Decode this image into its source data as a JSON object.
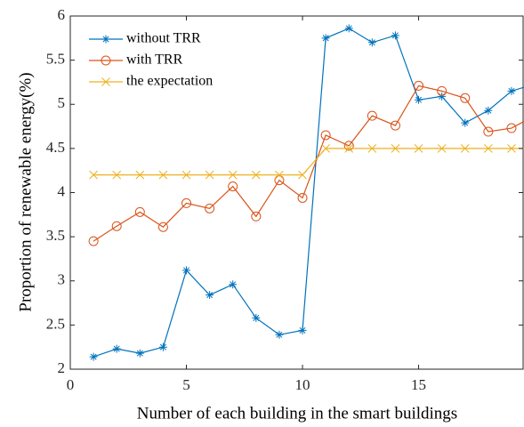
{
  "chart_data": {
    "type": "line",
    "xlabel": "Number of each building in the smart buildings",
    "ylabel": "Proportion of renewable energy(%)",
    "x": [
      1,
      2,
      3,
      4,
      5,
      6,
      7,
      8,
      9,
      10,
      11,
      12,
      13,
      14,
      15,
      16,
      17,
      18,
      19,
      20
    ],
    "series": [
      {
        "name": "without TRR",
        "color": "#0072bd",
        "marker": "asterisk",
        "values": [
          2.14,
          2.23,
          2.18,
          2.25,
          3.12,
          2.84,
          2.96,
          2.58,
          2.39,
          2.44,
          5.75,
          5.86,
          5.7,
          5.78,
          5.05,
          5.09,
          4.79,
          4.93,
          5.15,
          5.23
        ]
      },
      {
        "name": "with TRR",
        "color": "#d95319",
        "marker": "circle",
        "values": [
          3.45,
          3.62,
          3.78,
          3.61,
          3.88,
          3.82,
          4.07,
          3.73,
          4.14,
          3.94,
          4.65,
          4.53,
          4.87,
          4.76,
          5.21,
          5.15,
          5.07,
          4.69,
          4.73,
          4.87
        ]
      },
      {
        "name": "the expectation",
        "color": "#edb120",
        "marker": "x",
        "values": [
          4.2,
          4.2,
          4.2,
          4.2,
          4.2,
          4.2,
          4.2,
          4.2,
          4.2,
          4.2,
          4.5,
          4.5,
          4.5,
          4.5,
          4.5,
          4.5,
          4.5,
          4.5,
          4.5,
          4.5
        ]
      }
    ],
    "xlim": [
      0,
      19.5
    ],
    "xticks": [
      0,
      5,
      10,
      15
    ],
    "ylim": [
      2,
      6
    ],
    "yticks": [
      2,
      2.5,
      3,
      3.5,
      4,
      4.5,
      5,
      5.5,
      6
    ],
    "legend": "upper left",
    "grid": false
  }
}
